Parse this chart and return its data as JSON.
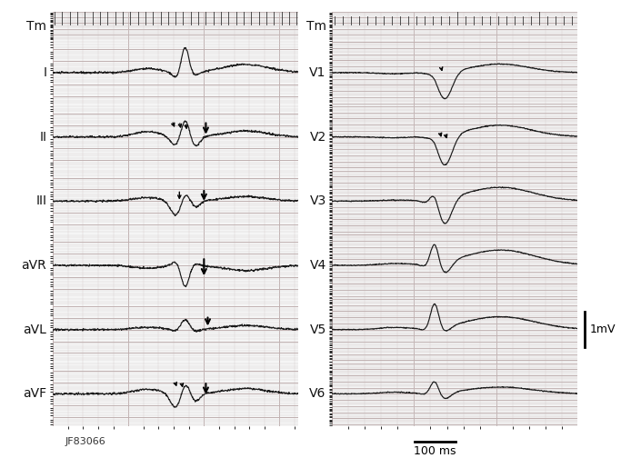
{
  "bg_color": "#f5f5f5",
  "grid_minor_color": "#d8d0d0",
  "grid_major_color": "#c0b0b0",
  "ecg_color": "#1a1a1a",
  "left_labels": [
    "Tm",
    "I",
    "II",
    "III",
    "aVR",
    "aVL",
    "aVF"
  ],
  "right_labels": [
    "Tm",
    "V1",
    "V2",
    "V3",
    "V4",
    "V5",
    "V6"
  ],
  "annotation_id": "JF83066",
  "scale_label": "1mV",
  "time_label": "100 ms",
  "figsize": [
    6.83,
    5.04
  ],
  "dpi": 100
}
